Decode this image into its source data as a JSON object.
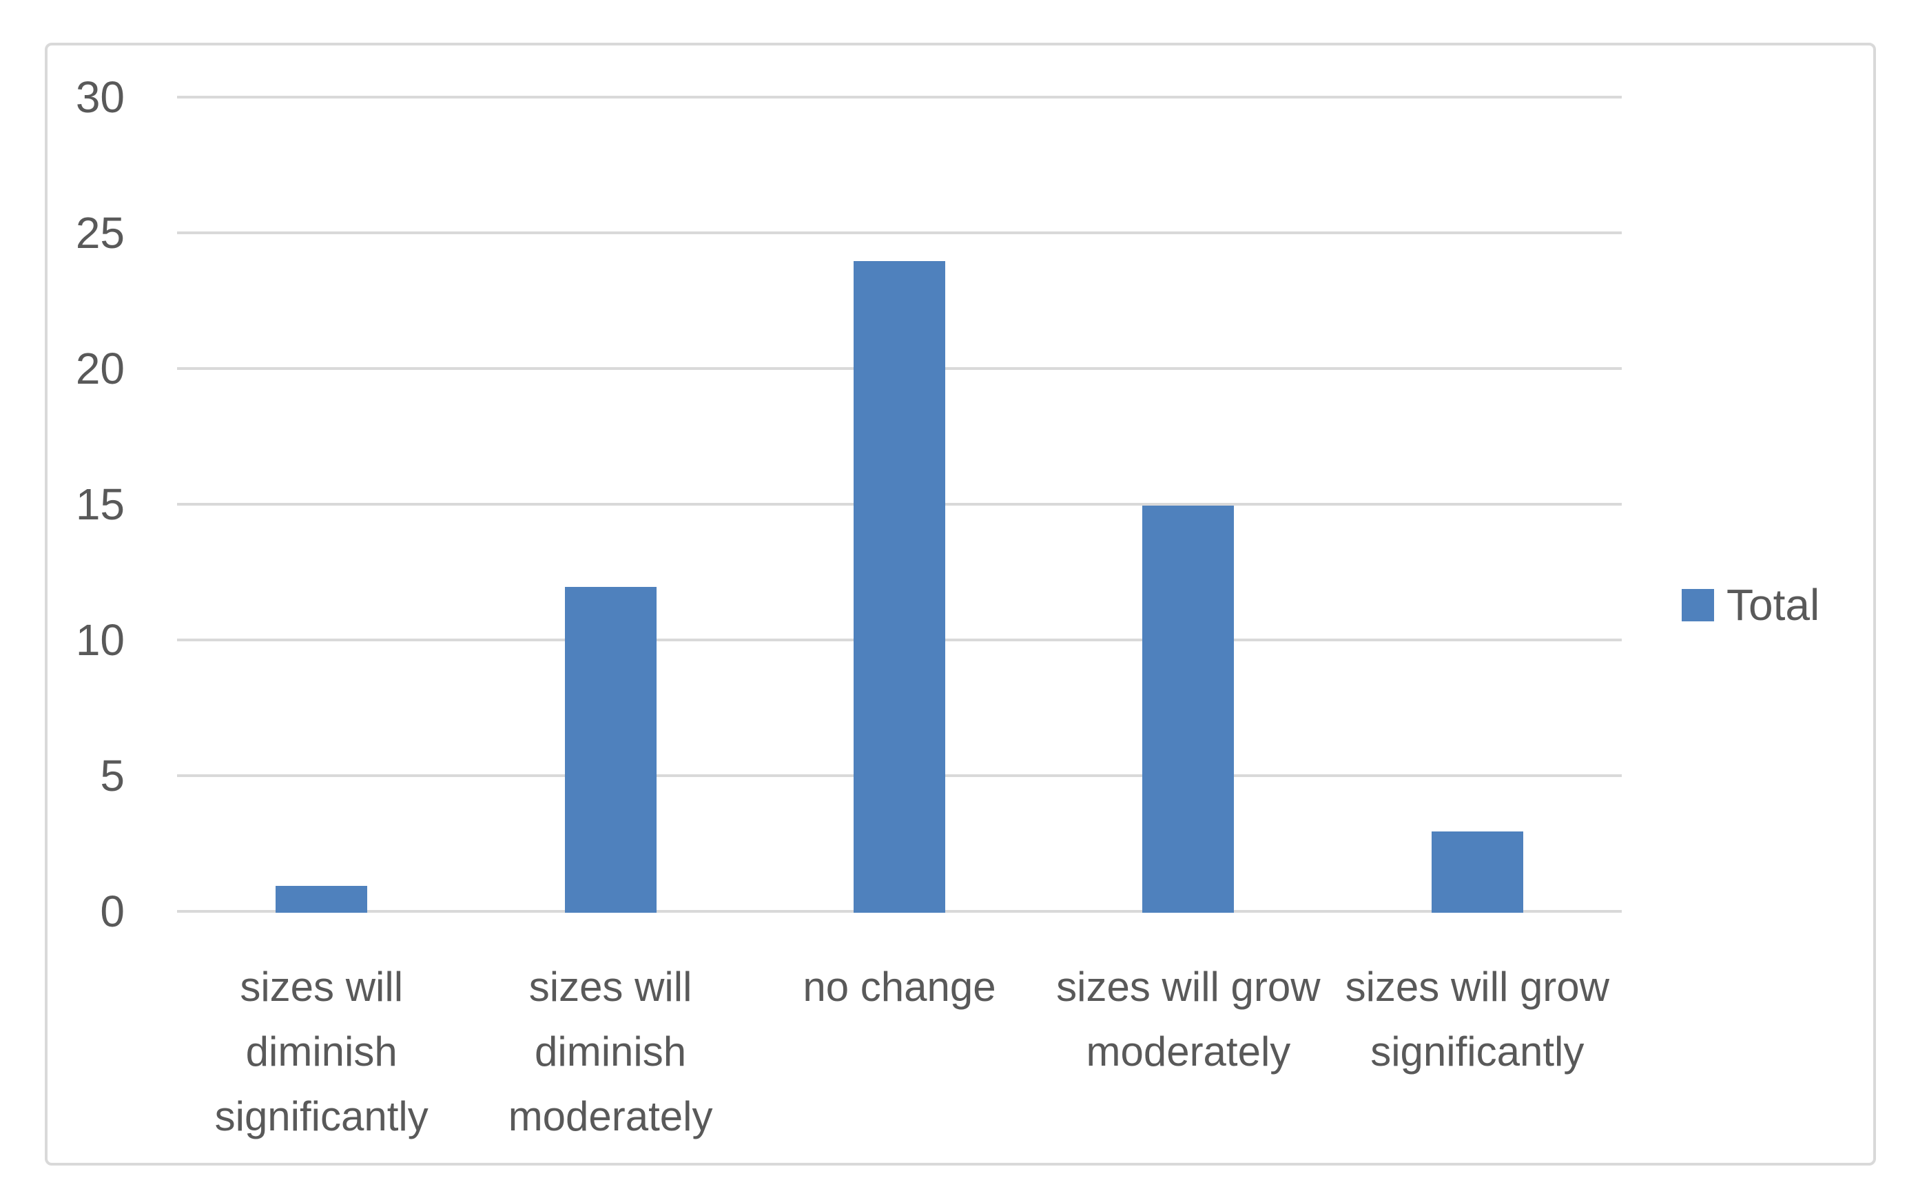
{
  "chart_data": {
    "type": "bar",
    "categories": [
      "sizes will diminish significantly",
      "sizes will diminish moderately",
      "no change",
      "sizes will grow moderately",
      "sizes will grow significantly"
    ],
    "series": [
      {
        "name": "Total",
        "values": [
          1,
          12,
          24,
          15,
          3
        ]
      }
    ],
    "title": "",
    "xlabel": "",
    "ylabel": "",
    "ylim": [
      0,
      30
    ],
    "yticks": [
      0,
      5,
      10,
      15,
      20,
      25,
      30
    ],
    "grid": true,
    "legend_position": "right",
    "colors": {
      "bar": "#4F81BD",
      "gridline": "#D9D9D9",
      "frame_border": "#D9D9D9",
      "text": "#595959"
    }
  }
}
